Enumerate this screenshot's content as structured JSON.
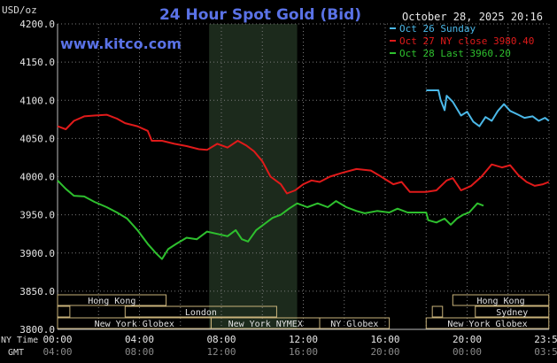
{
  "chart_data": {
    "type": "line",
    "title": "24 Hour Spot Gold (Bid)",
    "watermark": "www.kitco.com",
    "timestamp": "October 28, 2025 20:16",
    "ylabel": "USD/oz",
    "ylim": [
      3800,
      4200
    ],
    "y_ticks": [
      "4200.0",
      "4150.0",
      "4100.0",
      "4050.0",
      "4000.0",
      "3950.0",
      "3900.0",
      "3850.0",
      "3800.0"
    ],
    "x_row_label": "NY Time",
    "x_ticks": [
      "00:00",
      "04:00",
      "08:00",
      "12:00",
      "16:00",
      "20:00",
      "23:59"
    ],
    "x2_row_label": "GMT",
    "x2_ticks": [
      "04:00",
      "08:00",
      "12:00",
      "16:00",
      "20:00",
      "00:00",
      "03:59"
    ],
    "grid": true,
    "legend_position": "top-right",
    "highlight_band_hours": [
      7.4,
      11.7
    ],
    "series": [
      {
        "name": "Oct 26 Sunday",
        "color": "#4bb8e8",
        "points": [
          [
            18.0,
            4113
          ],
          [
            18.6,
            4113
          ],
          [
            18.7,
            4101
          ],
          [
            18.9,
            4087
          ],
          [
            19.0,
            4106
          ],
          [
            19.3,
            4098
          ],
          [
            19.7,
            4080
          ],
          [
            20.0,
            4085
          ],
          [
            20.3,
            4072
          ],
          [
            20.6,
            4066
          ],
          [
            20.9,
            4078
          ],
          [
            21.2,
            4073
          ],
          [
            21.5,
            4086
          ],
          [
            21.8,
            4095
          ],
          [
            22.1,
            4086
          ],
          [
            22.5,
            4081
          ],
          [
            22.8,
            4077
          ],
          [
            23.2,
            4079
          ],
          [
            23.5,
            4073
          ],
          [
            23.8,
            4077
          ],
          [
            23.99,
            4073
          ]
        ]
      },
      {
        "name": "Oct 27 NY close 3980.40",
        "color": "#e01a1a",
        "points": [
          [
            0.0,
            4066
          ],
          [
            0.4,
            4062
          ],
          [
            0.8,
            4073
          ],
          [
            1.3,
            4079
          ],
          [
            1.8,
            4080
          ],
          [
            2.4,
            4081
          ],
          [
            2.9,
            4076
          ],
          [
            3.3,
            4070
          ],
          [
            3.9,
            4066
          ],
          [
            4.4,
            4060
          ],
          [
            4.6,
            4047
          ],
          [
            5.1,
            4047
          ],
          [
            5.7,
            4043
          ],
          [
            6.3,
            4040
          ],
          [
            6.9,
            4036
          ],
          [
            7.3,
            4035
          ],
          [
            7.8,
            4043
          ],
          [
            8.3,
            4038
          ],
          [
            8.8,
            4047
          ],
          [
            9.2,
            4041
          ],
          [
            9.6,
            4033
          ],
          [
            10.0,
            4020
          ],
          [
            10.4,
            4000
          ],
          [
            10.9,
            3990
          ],
          [
            11.2,
            3978
          ],
          [
            11.6,
            3982
          ],
          [
            12.0,
            3990
          ],
          [
            12.4,
            3995
          ],
          [
            12.8,
            3993
          ],
          [
            13.3,
            4000
          ],
          [
            13.9,
            4005
          ],
          [
            14.6,
            4010
          ],
          [
            15.3,
            4008
          ],
          [
            15.8,
            4000
          ],
          [
            16.4,
            3990
          ],
          [
            16.8,
            3993
          ],
          [
            17.2,
            3980
          ],
          [
            18.0,
            3980
          ],
          [
            18.5,
            3982
          ],
          [
            19.0,
            3995
          ],
          [
            19.3,
            3998
          ],
          [
            19.7,
            3982
          ],
          [
            20.2,
            3988
          ],
          [
            20.7,
            4000
          ],
          [
            21.2,
            4016
          ],
          [
            21.7,
            4012
          ],
          [
            22.1,
            4015
          ],
          [
            22.5,
            4002
          ],
          [
            22.9,
            3993
          ],
          [
            23.3,
            3988
          ],
          [
            23.7,
            3990
          ],
          [
            23.99,
            3993
          ]
        ]
      },
      {
        "name": "Oct 28 Last 3960.20",
        "color": "#2ec02e",
        "points": [
          [
            0.0,
            3995
          ],
          [
            0.4,
            3984
          ],
          [
            0.8,
            3975
          ],
          [
            1.3,
            3974
          ],
          [
            1.8,
            3967
          ],
          [
            2.4,
            3960
          ],
          [
            2.9,
            3953
          ],
          [
            3.4,
            3945
          ],
          [
            3.9,
            3930
          ],
          [
            4.4,
            3912
          ],
          [
            4.8,
            3900
          ],
          [
            5.1,
            3892
          ],
          [
            5.4,
            3905
          ],
          [
            5.8,
            3912
          ],
          [
            6.3,
            3920
          ],
          [
            6.8,
            3918
          ],
          [
            7.3,
            3928
          ],
          [
            7.8,
            3925
          ],
          [
            8.3,
            3922
          ],
          [
            8.7,
            3930
          ],
          [
            9.0,
            3918
          ],
          [
            9.3,
            3915
          ],
          [
            9.7,
            3930
          ],
          [
            10.1,
            3938
          ],
          [
            10.5,
            3946
          ],
          [
            10.9,
            3950
          ],
          [
            11.3,
            3958
          ],
          [
            11.7,
            3965
          ],
          [
            12.2,
            3960
          ],
          [
            12.7,
            3965
          ],
          [
            13.2,
            3960
          ],
          [
            13.6,
            3968
          ],
          [
            14.1,
            3960
          ],
          [
            14.6,
            3955
          ],
          [
            15.0,
            3952
          ],
          [
            15.6,
            3955
          ],
          [
            16.2,
            3953
          ],
          [
            16.6,
            3958
          ],
          [
            17.1,
            3953
          ],
          [
            17.6,
            3953
          ],
          [
            18.0,
            3953
          ],
          [
            18.1,
            3943
          ],
          [
            18.5,
            3940
          ],
          [
            18.9,
            3945
          ],
          [
            19.2,
            3937
          ],
          [
            19.5,
            3945
          ],
          [
            19.8,
            3950
          ],
          [
            20.1,
            3953
          ],
          [
            20.5,
            3965
          ],
          [
            20.8,
            3962
          ]
        ]
      }
    ],
    "sessions": [
      {
        "label": "Hong Kong",
        "start": 0.0,
        "end": 5.3,
        "row": 0
      },
      {
        "label": "Hong Kong",
        "start": 19.3,
        "end": 23.99,
        "row": 0
      },
      {
        "label": "",
        "start": 0.0,
        "end": 0.6,
        "row": 1
      },
      {
        "label": "London",
        "start": 3.3,
        "end": 10.7,
        "row": 1
      },
      {
        "label": "Sydney",
        "start": 20.4,
        "end": 23.99,
        "row": 1
      },
      {
        "label": "",
        "start": 18.3,
        "end": 18.8,
        "row": 1
      },
      {
        "label": "New York Globex",
        "start": 0.0,
        "end": 7.5,
        "row": 2
      },
      {
        "label": "New York NYMEX",
        "start": 7.5,
        "end": 12.8,
        "row": 2
      },
      {
        "label": "NY Globex",
        "start": 12.8,
        "end": 16.2,
        "row": 2
      },
      {
        "label": "New York Globex",
        "start": 18.0,
        "end": 23.99,
        "row": 2
      }
    ]
  }
}
